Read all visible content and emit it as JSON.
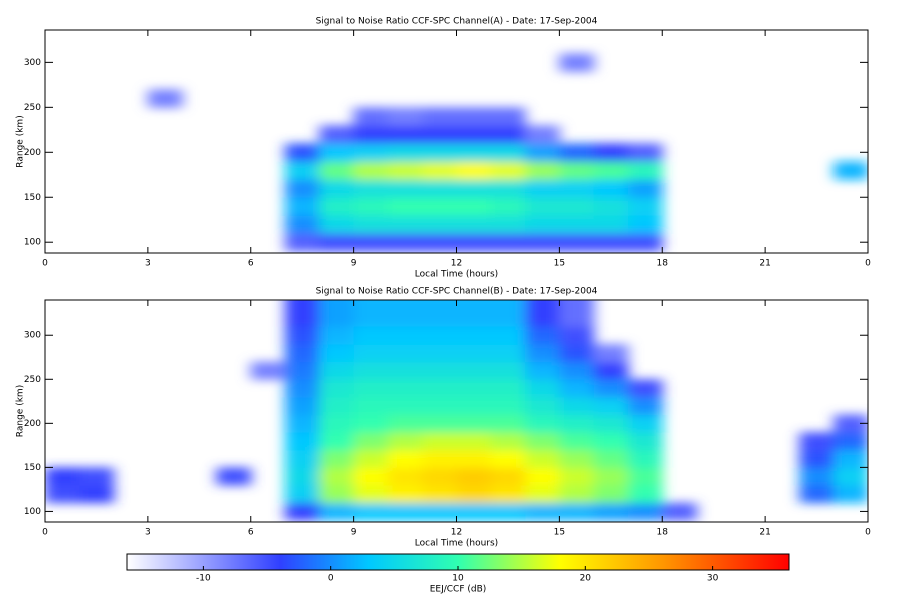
{
  "chart_data": [
    {
      "type": "heatmap",
      "title": "Signal to Noise Ratio CCF-SPC Channel(A) - Date: 17-Sep-2004",
      "xlabel": "Local Time (hours)",
      "ylabel": "Range (km)",
      "xlim": [
        0,
        24
      ],
      "xticks": [
        0,
        3,
        6,
        9,
        12,
        15,
        18,
        21,
        {
          "value": 24,
          "label": "0"
        }
      ],
      "ylim": [
        88,
        336
      ],
      "yticks": [
        100,
        150,
        200,
        250,
        300
      ],
      "xbins": [
        0,
        1,
        2,
        3,
        4,
        5,
        6,
        7,
        8,
        9,
        10,
        11,
        12,
        13,
        14,
        15,
        16,
        17,
        18,
        19,
        20,
        21,
        22,
        23,
        24
      ],
      "ybins": [
        90,
        110,
        130,
        150,
        170,
        190,
        210,
        230,
        250,
        270,
        290,
        310,
        330,
        350
      ],
      "z": [
        [
          null,
          null,
          null,
          null,
          null,
          null,
          null,
          -6,
          -5,
          -5,
          -5,
          -5,
          -5,
          -5,
          -5,
          -5,
          -5,
          -5,
          null,
          null,
          null,
          null,
          null,
          null
        ],
        [
          null,
          null,
          null,
          null,
          null,
          null,
          null,
          0,
          5,
          6,
          6,
          6,
          6,
          6,
          5,
          5,
          5,
          3,
          null,
          null,
          null,
          null,
          null,
          null
        ],
        [
          null,
          null,
          null,
          null,
          null,
          null,
          null,
          2,
          8,
          9,
          10,
          10,
          10,
          9,
          7,
          7,
          6,
          4,
          null,
          null,
          null,
          null,
          null,
          null
        ],
        [
          null,
          null,
          null,
          null,
          null,
          null,
          null,
          0,
          5,
          6,
          6,
          6,
          6,
          6,
          4,
          4,
          3,
          1,
          null,
          null,
          null,
          null,
          null,
          null
        ],
        [
          null,
          null,
          null,
          null,
          null,
          null,
          null,
          4,
          12,
          15,
          16,
          17,
          18,
          17,
          14,
          12,
          11,
          9,
          null,
          null,
          null,
          null,
          null,
          2
        ],
        [
          null,
          null,
          null,
          null,
          null,
          null,
          null,
          -3,
          3,
          4,
          5,
          5,
          5,
          5,
          1,
          -2,
          -4,
          -6,
          null,
          null,
          null,
          null,
          null,
          null
        ],
        [
          null,
          null,
          null,
          null,
          null,
          null,
          null,
          null,
          -6,
          -4,
          -4,
          -4,
          -4,
          -4,
          -8,
          null,
          null,
          null,
          null,
          null,
          null,
          null,
          null,
          null
        ],
        [
          null,
          null,
          null,
          null,
          null,
          null,
          null,
          null,
          null,
          -7,
          -8,
          -7,
          -7,
          -7,
          null,
          null,
          null,
          null,
          null,
          null,
          null,
          null,
          null,
          null
        ],
        [
          null,
          null,
          null,
          -8,
          null,
          null,
          null,
          null,
          null,
          null,
          null,
          null,
          null,
          null,
          null,
          null,
          null,
          null,
          null,
          null,
          null,
          null,
          null,
          null
        ],
        [
          null,
          null,
          null,
          null,
          null,
          null,
          null,
          null,
          null,
          null,
          null,
          null,
          null,
          null,
          null,
          null,
          null,
          null,
          null,
          null,
          null,
          null,
          null,
          null
        ],
        [
          null,
          null,
          null,
          null,
          null,
          null,
          null,
          null,
          null,
          null,
          null,
          null,
          null,
          null,
          null,
          -8,
          null,
          null,
          null,
          null,
          null,
          null,
          null,
          null
        ],
        [
          null,
          null,
          null,
          null,
          null,
          null,
          null,
          null,
          null,
          null,
          null,
          null,
          null,
          null,
          null,
          null,
          null,
          null,
          null,
          null,
          null,
          null,
          null,
          null
        ],
        [
          null,
          null,
          null,
          null,
          null,
          null,
          null,
          null,
          null,
          null,
          null,
          null,
          null,
          null,
          null,
          null,
          null,
          null,
          null,
          null,
          null,
          null,
          null,
          null
        ]
      ]
    },
    {
      "type": "heatmap",
      "title": "Signal to Noise Ratio CCF-SPC Channel(B) - Date: 17-Sep-2004",
      "xlabel": "Local Time (hours)",
      "ylabel": "Range (km)",
      "xlim": [
        0,
        24
      ],
      "xticks": [
        0,
        3,
        6,
        9,
        12,
        15,
        18,
        21,
        {
          "value": 24,
          "label": "0"
        }
      ],
      "ylim": [
        88,
        340
      ],
      "yticks": [
        100,
        150,
        200,
        250,
        300
      ],
      "xbins": [
        0,
        1,
        2,
        3,
        4,
        5,
        6,
        7,
        8,
        9,
        10,
        11,
        12,
        13,
        14,
        15,
        16,
        17,
        18,
        19,
        20,
        21,
        22,
        23,
        24
      ],
      "ybins": [
        90,
        110,
        130,
        150,
        170,
        190,
        210,
        230,
        250,
        270,
        290,
        310,
        330,
        350
      ],
      "z": [
        [
          null,
          null,
          null,
          null,
          null,
          null,
          null,
          -4,
          2,
          3,
          3,
          3,
          3,
          3,
          2,
          2,
          1,
          0,
          -6,
          null,
          null,
          null,
          null,
          null
        ],
        [
          -5,
          -4,
          null,
          null,
          null,
          null,
          null,
          4,
          14,
          17,
          19,
          20,
          21,
          20,
          17,
          15,
          13,
          10,
          null,
          null,
          null,
          null,
          -2,
          2
        ],
        [
          -4,
          -5,
          null,
          null,
          null,
          -5,
          null,
          5,
          15,
          18,
          20,
          21,
          22,
          21,
          18,
          16,
          14,
          11,
          null,
          null,
          null,
          null,
          0,
          4
        ],
        [
          null,
          null,
          null,
          null,
          null,
          null,
          null,
          4,
          13,
          16,
          18,
          19,
          19,
          18,
          16,
          14,
          12,
          9,
          null,
          null,
          null,
          null,
          -3,
          2
        ],
        [
          null,
          null,
          null,
          null,
          null,
          null,
          null,
          3,
          10,
          13,
          15,
          16,
          16,
          15,
          13,
          11,
          10,
          7,
          null,
          null,
          null,
          null,
          -5,
          -2
        ],
        [
          null,
          null,
          null,
          null,
          null,
          null,
          null,
          2,
          9,
          10,
          11,
          11,
          11,
          11,
          9,
          8,
          7,
          4,
          null,
          null,
          null,
          null,
          null,
          -6
        ],
        [
          null,
          null,
          null,
          null,
          null,
          null,
          null,
          1,
          8,
          9,
          9,
          9,
          9,
          9,
          7,
          5,
          4,
          0,
          null,
          null,
          null,
          null,
          null,
          null
        ],
        [
          null,
          null,
          null,
          null,
          null,
          null,
          null,
          0,
          7,
          8,
          8,
          8,
          8,
          8,
          5,
          2,
          0,
          -5,
          null,
          null,
          null,
          null,
          null,
          null
        ],
        [
          null,
          null,
          null,
          null,
          null,
          null,
          -8,
          -1,
          5,
          6,
          6,
          6,
          6,
          6,
          2,
          0,
          -4,
          null,
          null,
          null,
          null,
          null,
          null,
          null
        ],
        [
          null,
          null,
          null,
          null,
          null,
          null,
          null,
          -2,
          3,
          4,
          4,
          4,
          4,
          4,
          0,
          -3,
          -8,
          null,
          null,
          null,
          null,
          null,
          null,
          null
        ],
        [
          null,
          null,
          null,
          null,
          null,
          null,
          null,
          -3,
          2,
          3,
          3,
          3,
          3,
          3,
          -2,
          -5,
          null,
          null,
          null,
          null,
          null,
          null,
          null,
          null
        ],
        [
          null,
          null,
          null,
          null,
          null,
          null,
          null,
          -4,
          1,
          2,
          2,
          2,
          2,
          2,
          -4,
          -7,
          null,
          null,
          null,
          null,
          null,
          null,
          null,
          null
        ],
        [
          null,
          null,
          null,
          null,
          null,
          null,
          null,
          -4,
          1,
          2,
          2,
          2,
          2,
          2,
          -4,
          -7,
          null,
          null,
          null,
          null,
          null,
          null,
          null,
          null
        ]
      ]
    },
    {
      "type": "colorbar",
      "xlabel": "EEJ/CCF (dB)",
      "xlim": [
        -16,
        36
      ],
      "xticks": [
        -10,
        0,
        10,
        20,
        30
      ],
      "colormap": [
        [
          -16,
          "#ffffff"
        ],
        [
          -4,
          "#3040ff"
        ],
        [
          3,
          "#00c8ff"
        ],
        [
          10,
          "#30ffb0"
        ],
        [
          18,
          "#ffff00"
        ],
        [
          26,
          "#ff9800"
        ],
        [
          36,
          "#ff0000"
        ]
      ]
    }
  ]
}
